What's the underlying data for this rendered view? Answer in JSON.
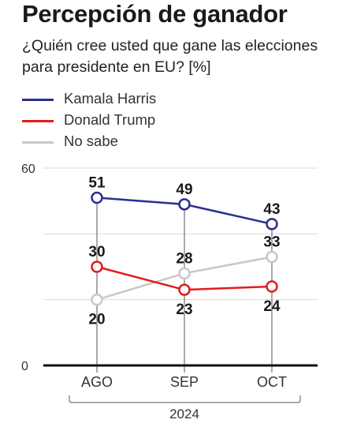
{
  "header": {
    "title": "Percepción de ganador",
    "subtitle": "¿Quién cree usted que gane las elecciones para presidente en EU?  [%]"
  },
  "colors": {
    "harris": "#2a2f8f",
    "trump": "#e11d1d",
    "no_sabe": "#c8c8c8",
    "grid": "#d7ddd9",
    "axis": "#111111"
  },
  "chart_data": {
    "type": "line",
    "title": "Percepción de ganador",
    "subtitle": "¿Quién cree usted que gane las elecciones para presidente en EU?  [%]",
    "categories": [
      "AGO",
      "SEP",
      "OCT"
    ],
    "group_label": "2024",
    "ylim": [
      0,
      60
    ],
    "y_ticks": [
      0,
      60
    ],
    "grid": true,
    "legend_position": "top-left",
    "series": [
      {
        "name": "Kamala Harris",
        "color": "#2a2f8f",
        "values": [
          51,
          49,
          43
        ],
        "label_position": "above"
      },
      {
        "name": "Donald Trump",
        "color": "#e11d1d",
        "values": [
          30,
          23,
          24
        ],
        "label_position": "mixed"
      },
      {
        "name": "No sabe",
        "color": "#c8c8c8",
        "values": [
          20,
          28,
          33
        ],
        "label_position": "mixed"
      }
    ]
  }
}
